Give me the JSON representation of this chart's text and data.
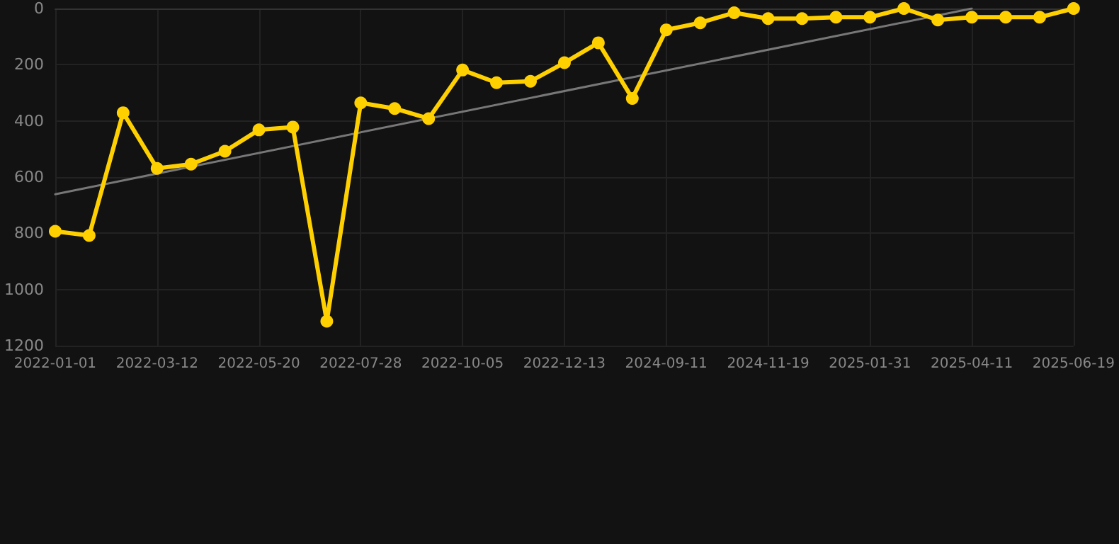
{
  "chart_data": {
    "type": "line",
    "categories": [
      "2022-01-01",
      null,
      null,
      "2022-03-12",
      null,
      null,
      "2022-05-20",
      null,
      null,
      "2022-07-28",
      null,
      null,
      "2022-10-05",
      null,
      null,
      "2022-12-13",
      null,
      null,
      "2024-09-11",
      null,
      null,
      "2024-11-19",
      null,
      null,
      "2025-01-31",
      null,
      null,
      "2025-04-11",
      null,
      null,
      "2025-06-19"
    ],
    "series": [
      {
        "color": "#ffd000",
        "marker": "circle",
        "values": [
          793,
          808,
          371,
          569,
          554,
          508,
          432,
          422,
          1113,
          336,
          356,
          392,
          219,
          264,
          259,
          193,
          122,
          320,
          76,
          51,
          15,
          36,
          36,
          31,
          31,
          0,
          41,
          31,
          31,
          31,
          0
        ]
      },
      {
        "type": "line",
        "color": "#777777",
        "marker": "none",
        "values": [
          661,
          null,
          null,
          null,
          null,
          null,
          null,
          null,
          null,
          null,
          null,
          null,
          null,
          null,
          null,
          null,
          null,
          null,
          null,
          null,
          null,
          null,
          null,
          null,
          null,
          null,
          null,
          0,
          null,
          null,
          null
        ]
      }
    ],
    "ylim": [
      1200,
      0
    ],
    "yticks": [
      0,
      200,
      400,
      600,
      800,
      1000,
      1200
    ],
    "grid": true
  }
}
